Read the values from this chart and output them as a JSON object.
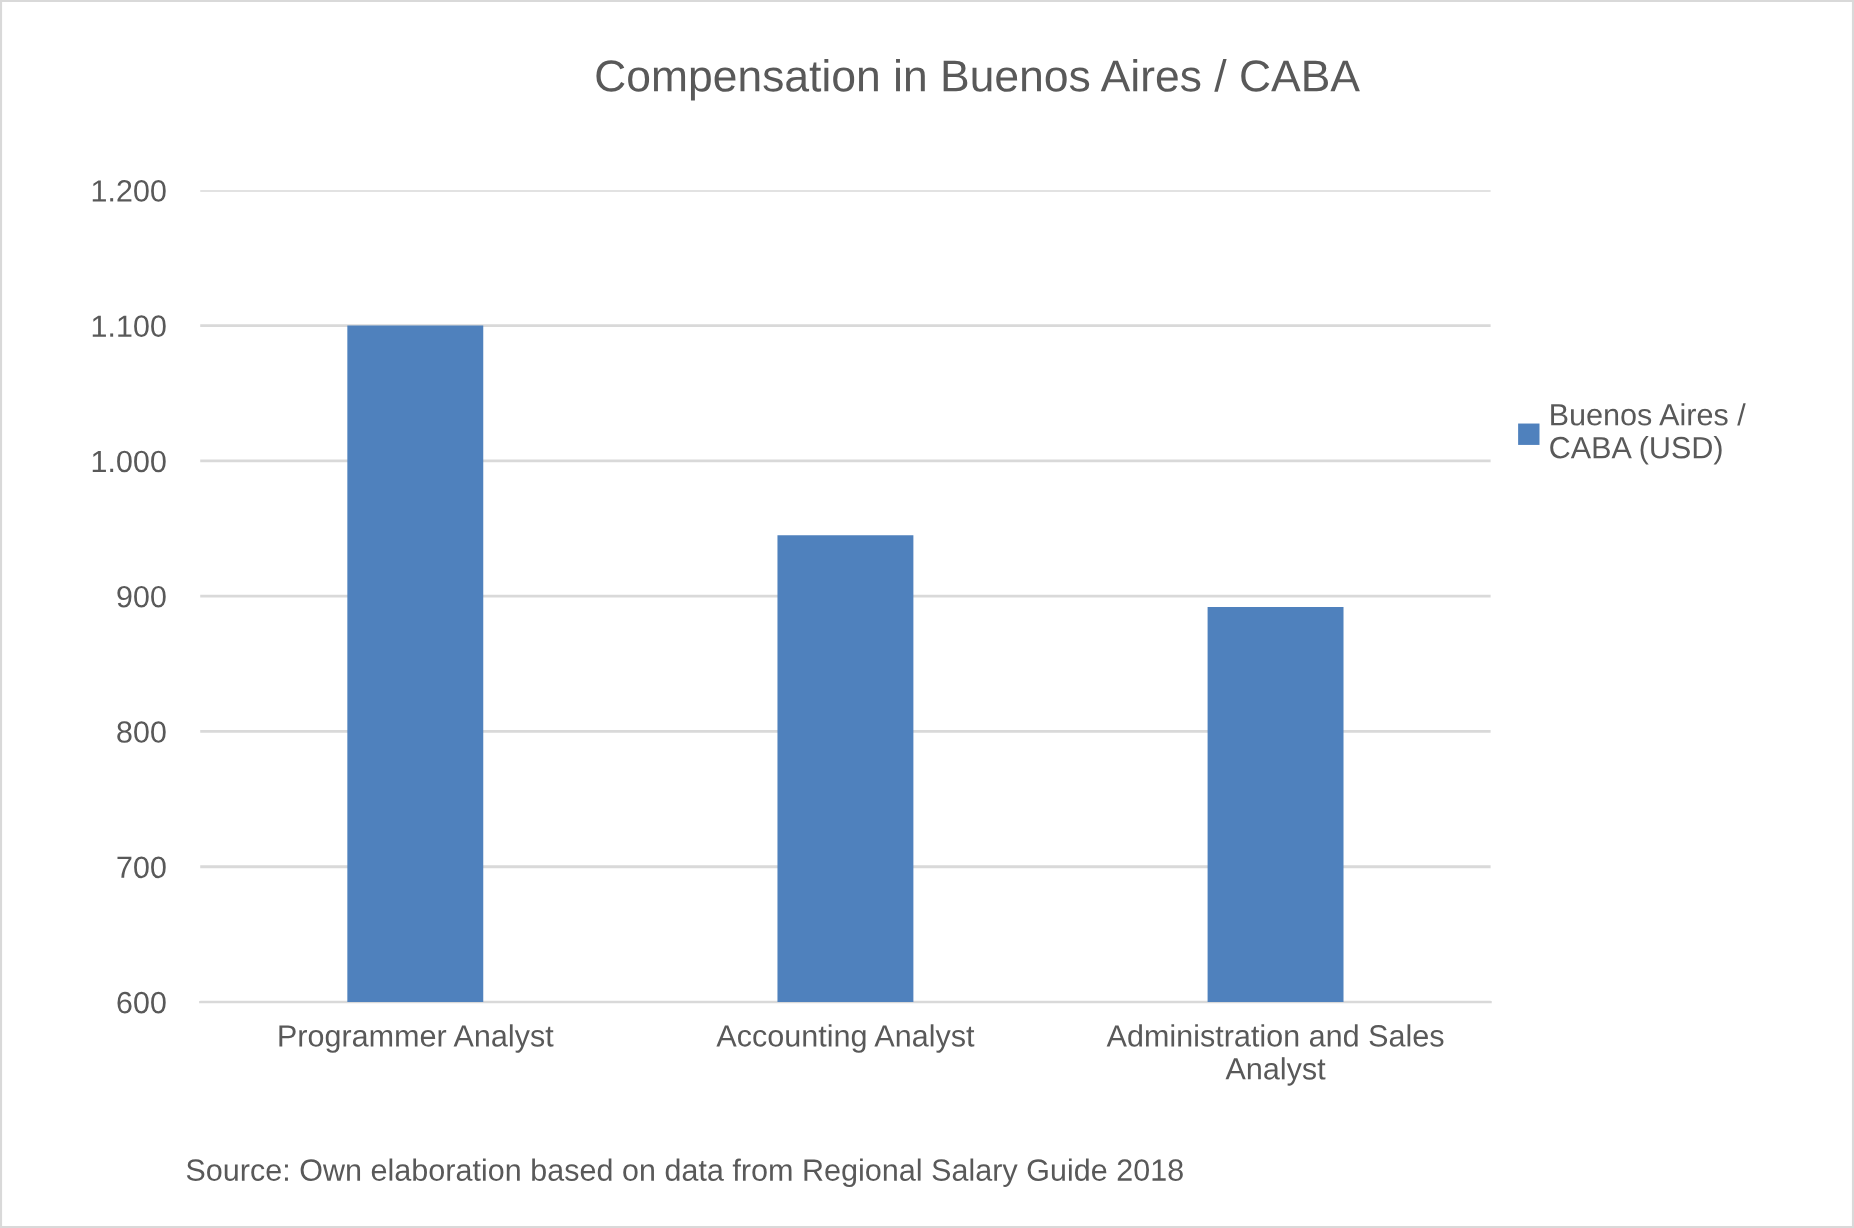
{
  "chart_data": {
    "type": "bar",
    "title": "Compensation in Buenos Aires / CABA",
    "categories": [
      "Programmer Analyst",
      "Accounting Analyst",
      "Administration and Sales Analyst"
    ],
    "series": [
      {
        "name": "Buenos Aires / CABA (USD)",
        "color": "#4f81bd",
        "values": [
          1100,
          945,
          892
        ]
      }
    ],
    "ylim": [
      600,
      1200
    ],
    "yticks": [
      600,
      700,
      800,
      900,
      {
        "value": 1000,
        "label": "1.000"
      },
      {
        "value": 1100,
        "label": "1.100"
      },
      {
        "value": 1200,
        "label": "1.200"
      }
    ],
    "grid": "y",
    "legend": "right",
    "annotations": [
      "Source: Own elaboration based on data from Regional Salary Guide 2018"
    ]
  }
}
